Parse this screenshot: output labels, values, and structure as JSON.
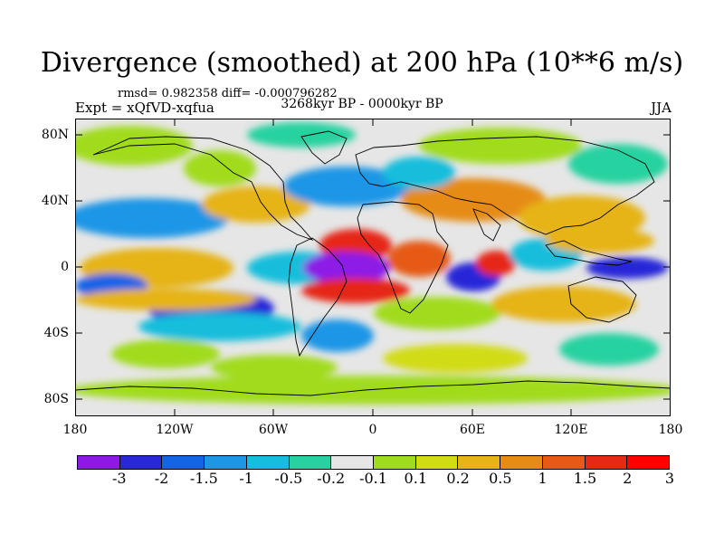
{
  "title": "Divergence (smoothed) at 200 hPa (10**6 m/s)",
  "stats": "rmsd= 0.982358 diff= -0.000796282",
  "experiment": "Expt = xQfVD-xqfua",
  "period": "3268kyr BP - 0000kyr BP",
  "season": "JJA",
  "lat_labels": [
    "80N",
    "40N",
    "0",
    "40S",
    "80S"
  ],
  "lon_labels": [
    "180",
    "120W",
    "60W",
    "0",
    "60E",
    "120E",
    "180"
  ],
  "colorbar": {
    "colors": [
      "#8c1ae6",
      "#2828d8",
      "#1464e6",
      "#1e96e6",
      "#14bedc",
      "#28d2a0",
      "#e6e6e6",
      "#a0dc1e",
      "#d2dc14",
      "#e6b414",
      "#e68c14",
      "#e65a14",
      "#e62814",
      "#ff0000"
    ],
    "labels": [
      "-3",
      "-2",
      "-1.5",
      "-1",
      "-0.5",
      "-0.2",
      "-0.1",
      "0.1",
      "0.2",
      "0.5",
      "1",
      "1.5",
      "2",
      "3"
    ]
  }
}
